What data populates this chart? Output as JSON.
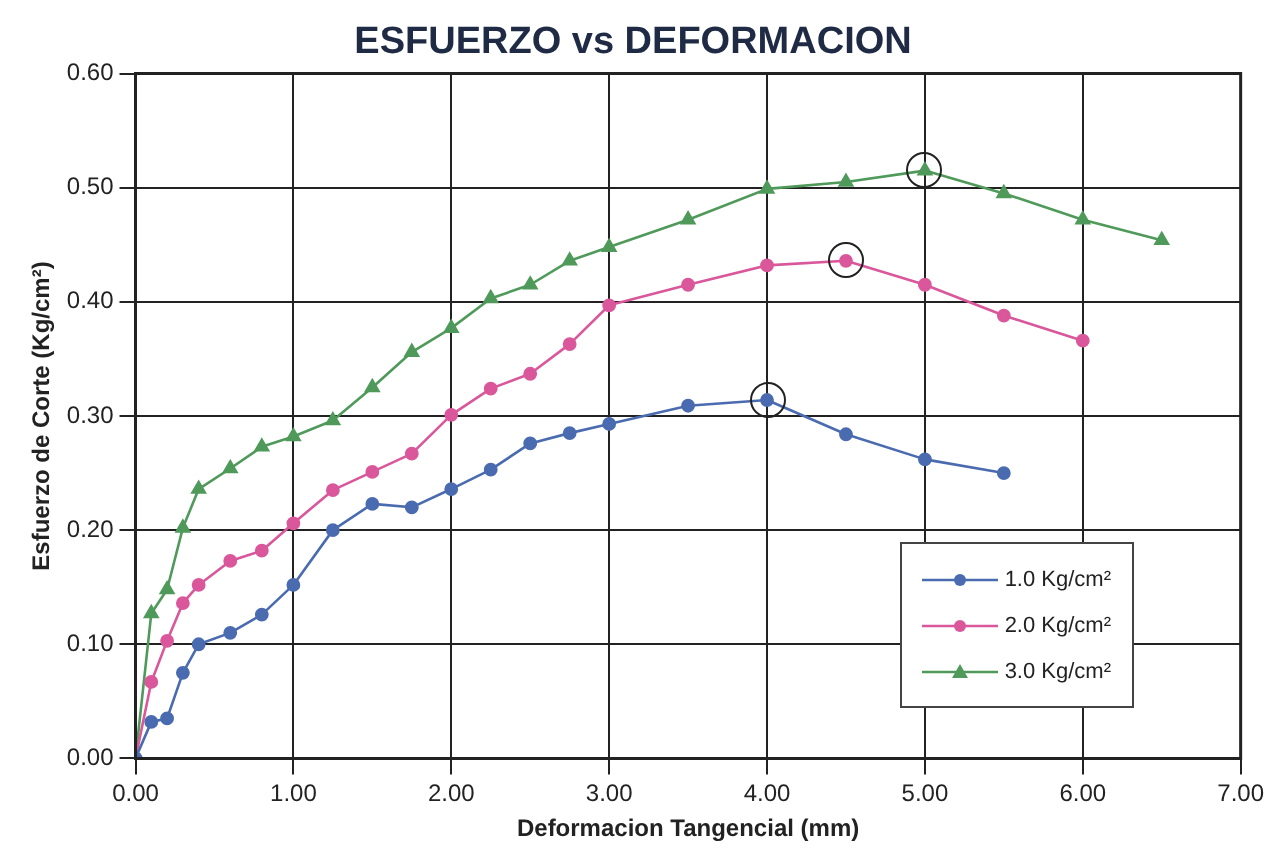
{
  "chart_data": {
    "type": "line",
    "title": "ESFUERZO vs DEFORMACION",
    "xlabel": "Deformacion Tangencial (mm)",
    "ylabel": "Esfuerzo de Corte (Kg/cm²)",
    "x": [
      0,
      0.1,
      0.2,
      0.3,
      0.4,
      0.6,
      0.8,
      1.0,
      1.25,
      1.5,
      1.75,
      2.0,
      2.25,
      2.5,
      2.75,
      3.0,
      3.5,
      4.0,
      4.5,
      5.0,
      5.5,
      6.0,
      6.5
    ],
    "series": [
      {
        "name": "1.0 Kg/cm²",
        "color": "#4a6bb0",
        "marker": "circle",
        "x": [
          0,
          0.1,
          0.2,
          0.3,
          0.4,
          0.6,
          0.8,
          1.0,
          1.25,
          1.5,
          1.75,
          2.0,
          2.25,
          2.5,
          2.75,
          3.0,
          3.5,
          4.0,
          4.5,
          5.0,
          5.5
        ],
        "values": [
          0,
          0.032,
          0.035,
          0.075,
          0.1,
          0.11,
          0.126,
          0.152,
          0.2,
          0.223,
          0.22,
          0.236,
          0.253,
          0.276,
          0.285,
          0.293,
          0.309,
          0.314,
          0.284,
          0.262,
          0.25
        ]
      },
      {
        "name": "2.0 Kg/cm²",
        "color": "#d9579a",
        "marker": "circle",
        "x": [
          0,
          0.1,
          0.2,
          0.3,
          0.4,
          0.6,
          0.8,
          1.0,
          1.25,
          1.5,
          1.75,
          2.0,
          2.25,
          2.5,
          2.75,
          3.0,
          3.5,
          4.0,
          4.5,
          5.0,
          5.5,
          6.0
        ],
        "values": [
          0,
          0.067,
          0.103,
          0.136,
          0.152,
          0.173,
          0.182,
          0.206,
          0.235,
          0.251,
          0.267,
          0.301,
          0.324,
          0.337,
          0.363,
          0.397,
          0.415,
          0.432,
          0.436,
          0.415,
          0.388,
          0.366
        ]
      },
      {
        "name": "3.0 Kg/cm²",
        "color": "#4f9a5a",
        "marker": "triangle",
        "values": [
          0,
          0.127,
          0.148,
          0.202,
          0.236,
          0.254,
          0.273,
          0.282,
          0.296,
          0.325,
          0.356,
          0.377,
          0.403,
          0.415,
          0.436,
          0.448,
          0.472,
          0.499,
          0.505,
          0.515,
          0.495,
          0.472,
          0.454
        ]
      }
    ],
    "xlim": [
      0,
      7
    ],
    "xticks": [
      {
        "value": 0,
        "label": "0.00"
      },
      {
        "value": 1,
        "label": "1.00"
      },
      {
        "value": 2,
        "label": "2.00"
      },
      {
        "value": 3,
        "label": "3.00"
      },
      {
        "value": 4,
        "label": "4.00"
      },
      {
        "value": 5,
        "label": "5.00"
      },
      {
        "value": 6,
        "label": "6.00"
      },
      {
        "value": 7,
        "label": "7.00"
      }
    ],
    "ylim": [
      0,
      0.6
    ],
    "yticks": [
      {
        "value": 0,
        "label": "0.00"
      },
      {
        "value": 0.1,
        "label": "0.10"
      },
      {
        "value": 0.2,
        "label": "0.20"
      },
      {
        "value": 0.3,
        "label": "0.30"
      },
      {
        "value": 0.4,
        "label": "0.40"
      },
      {
        "value": 0.5,
        "label": "0.50"
      },
      {
        "value": 0.6,
        "label": "0.60"
      }
    ],
    "grid": true,
    "legend": "bottom right"
  }
}
